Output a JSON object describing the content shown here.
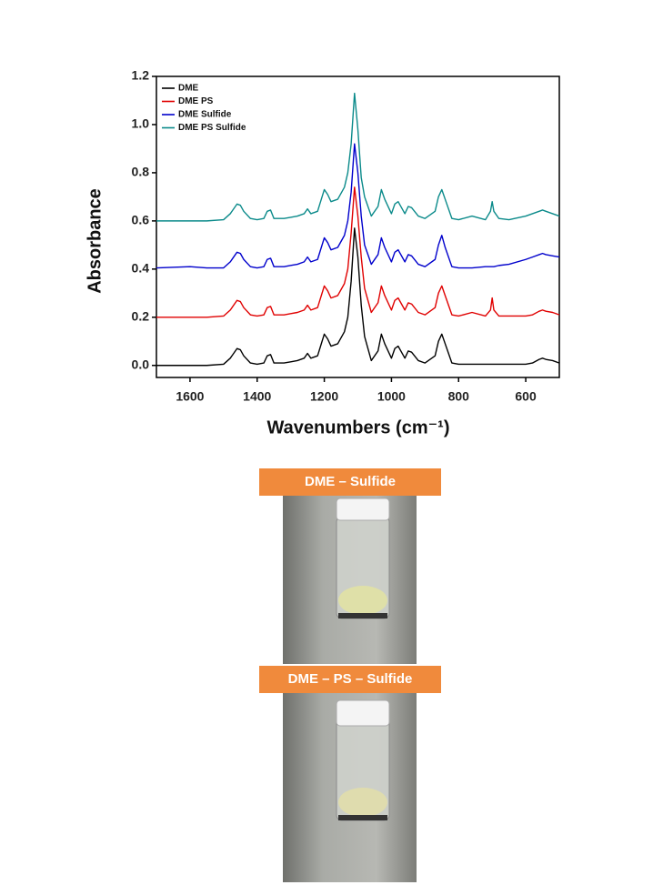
{
  "chart_data": {
    "type": "line",
    "x_label": "Wavenumbers (cm⁻¹)",
    "y_label": "Absorbance",
    "xlim": [
      1700,
      500
    ],
    "ylim": [
      -0.05,
      1.2
    ],
    "xticks": [
      1600,
      1400,
      1200,
      1000,
      800,
      600
    ],
    "yticks": [
      {
        "value": 0,
        "label": "0.0"
      },
      0.2,
      0.4,
      0.6,
      0.8,
      {
        "value": 1,
        "label": "1.0"
      },
      1.2
    ],
    "legend": "upper left",
    "x": [
      1700,
      1600,
      1550,
      1500,
      1480,
      1460,
      1450,
      1440,
      1420,
      1400,
      1380,
      1370,
      1360,
      1350,
      1320,
      1300,
      1280,
      1260,
      1250,
      1240,
      1220,
      1200,
      1190,
      1180,
      1160,
      1140,
      1130,
      1120,
      1110,
      1100,
      1090,
      1080,
      1060,
      1040,
      1030,
      1020,
      1000,
      990,
      980,
      960,
      950,
      940,
      920,
      900,
      870,
      860,
      850,
      840,
      820,
      800,
      760,
      720,
      705,
      700,
      695,
      680,
      650,
      600,
      580,
      560,
      550,
      540,
      520,
      500
    ],
    "series": [
      {
        "name": "DME",
        "color": "#000000",
        "values": [
          0,
          0,
          0,
          0.005,
          0.03,
          0.07,
          0.065,
          0.04,
          0.01,
          0.005,
          0.01,
          0.04,
          0.045,
          0.01,
          0.01,
          0.015,
          0.02,
          0.03,
          0.05,
          0.03,
          0.04,
          0.13,
          0.11,
          0.08,
          0.09,
          0.14,
          0.2,
          0.35,
          0.57,
          0.45,
          0.25,
          0.12,
          0.02,
          0.06,
          0.13,
          0.09,
          0.03,
          0.07,
          0.08,
          0.03,
          0.06,
          0.055,
          0.02,
          0.01,
          0.04,
          0.1,
          0.13,
          0.09,
          0.01,
          0.005,
          0.005,
          0.005,
          0.005,
          0.005,
          0.005,
          0.005,
          0.005,
          0.005,
          0.01,
          0.025,
          0.03,
          0.025,
          0.02,
          0.01
        ]
      },
      {
        "name": "DME PS",
        "color": "#e00000",
        "values": [
          0.2,
          0.2,
          0.2,
          0.205,
          0.23,
          0.27,
          0.265,
          0.24,
          0.21,
          0.205,
          0.21,
          0.24,
          0.245,
          0.21,
          0.21,
          0.215,
          0.22,
          0.23,
          0.25,
          0.23,
          0.24,
          0.33,
          0.31,
          0.28,
          0.29,
          0.34,
          0.4,
          0.55,
          0.74,
          0.62,
          0.45,
          0.32,
          0.22,
          0.26,
          0.33,
          0.29,
          0.23,
          0.27,
          0.28,
          0.23,
          0.26,
          0.255,
          0.22,
          0.21,
          0.24,
          0.3,
          0.33,
          0.29,
          0.21,
          0.205,
          0.22,
          0.205,
          0.23,
          0.28,
          0.23,
          0.205,
          0.205,
          0.205,
          0.21,
          0.225,
          0.23,
          0.225,
          0.22,
          0.21
        ]
      },
      {
        "name": "DME Sulfide",
        "color": "#0000cc",
        "values": [
          0.405,
          0.41,
          0.405,
          0.405,
          0.43,
          0.47,
          0.465,
          0.44,
          0.41,
          0.405,
          0.41,
          0.44,
          0.445,
          0.41,
          0.41,
          0.415,
          0.42,
          0.43,
          0.45,
          0.43,
          0.44,
          0.53,
          0.51,
          0.48,
          0.49,
          0.54,
          0.6,
          0.72,
          0.92,
          0.8,
          0.62,
          0.5,
          0.42,
          0.46,
          0.53,
          0.49,
          0.43,
          0.47,
          0.48,
          0.43,
          0.46,
          0.455,
          0.42,
          0.41,
          0.44,
          0.5,
          0.54,
          0.49,
          0.41,
          0.405,
          0.405,
          0.41,
          0.41,
          0.41,
          0.41,
          0.415,
          0.42,
          0.44,
          0.45,
          0.46,
          0.465,
          0.46,
          0.455,
          0.45
        ]
      },
      {
        "name": "DME PS Sulfide",
        "color": "#0a8a8a",
        "values": [
          0.6,
          0.6,
          0.6,
          0.605,
          0.63,
          0.67,
          0.665,
          0.64,
          0.61,
          0.605,
          0.61,
          0.64,
          0.645,
          0.61,
          0.61,
          0.615,
          0.62,
          0.63,
          0.65,
          0.63,
          0.64,
          0.73,
          0.71,
          0.68,
          0.69,
          0.74,
          0.8,
          0.92,
          1.13,
          0.98,
          0.78,
          0.7,
          0.62,
          0.66,
          0.73,
          0.69,
          0.63,
          0.67,
          0.68,
          0.63,
          0.66,
          0.655,
          0.62,
          0.61,
          0.64,
          0.7,
          0.73,
          0.69,
          0.61,
          0.605,
          0.62,
          0.605,
          0.64,
          0.68,
          0.64,
          0.61,
          0.605,
          0.62,
          0.63,
          0.64,
          0.645,
          0.64,
          0.63,
          0.62
        ]
      }
    ]
  },
  "photos": [
    {
      "label": "DME – Sulfide"
    },
    {
      "label": "DME – PS – Sulfide"
    }
  ]
}
